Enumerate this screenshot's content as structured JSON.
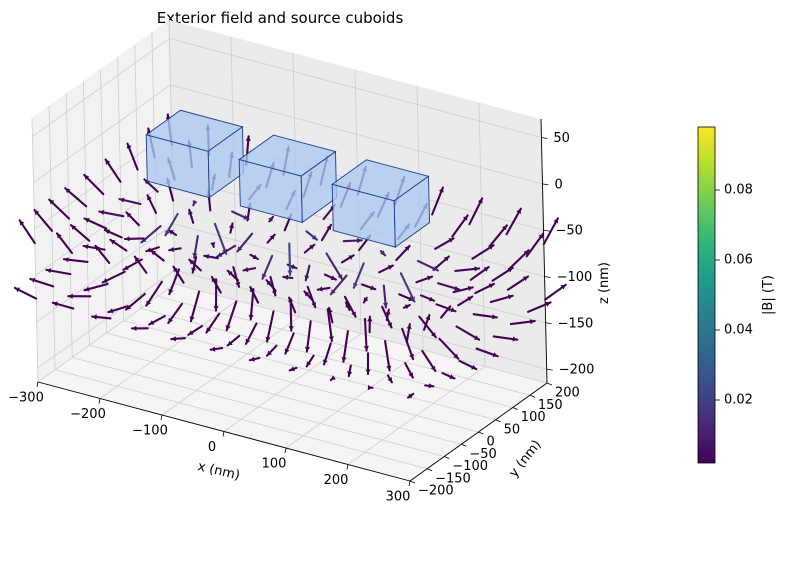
{
  "chart_data": {
    "type": "quiver3d",
    "title": "Exterior field and source cuboids",
    "xlabel": "x (nm)",
    "ylabel": "y (nm)",
    "zlabel": "z (nm)",
    "xlim": [
      -300,
      300
    ],
    "ylim": [
      -200,
      200
    ],
    "zlim": [
      -215,
      70
    ],
    "xticks": [
      "−300",
      "−200",
      "−100",
      "0",
      "100",
      "200",
      "300"
    ],
    "xtick_values": [
      -300,
      -200,
      -100,
      0,
      100,
      200,
      300
    ],
    "yticks": [
      "−200",
      "−150",
      "−100",
      "−50",
      "0",
      "50",
      "100",
      "150",
      "200"
    ],
    "ytick_values": [
      -200,
      -150,
      -100,
      -50,
      0,
      50,
      100,
      150,
      200
    ],
    "zticks": [
      "−200",
      "−150",
      "−100",
      "−50",
      "0",
      "50"
    ],
    "ztick_values": [
      -200,
      -150,
      -100,
      -50,
      0,
      50
    ],
    "grid": true,
    "field_grid": {
      "x_range": [
        -300,
        300
      ],
      "x_count": 11,
      "y_range": [
        -200,
        200
      ],
      "y_count": 9,
      "z_levels": [
        -125,
        -65
      ]
    },
    "cuboids": [
      {
        "center": [
          -150,
          0,
          5
        ],
        "size": [
          100,
          100,
          50
        ]
      },
      {
        "center": [
          0,
          0,
          5
        ],
        "size": [
          100,
          100,
          50
        ]
      },
      {
        "center": [
          150,
          0,
          5
        ],
        "size": [
          100,
          100,
          50
        ]
      }
    ],
    "cuboid_face_color": "#aac8f2",
    "cuboid_edge_color": "#1f3c8c",
    "colorbar": {
      "label": "|B| (T)",
      "range": [
        0.002,
        0.098
      ],
      "ticks": [
        "0.02",
        "0.04",
        "0.06",
        "0.08"
      ],
      "tick_values": [
        0.02,
        0.04,
        0.06,
        0.08
      ],
      "colormap": "viridis"
    }
  }
}
